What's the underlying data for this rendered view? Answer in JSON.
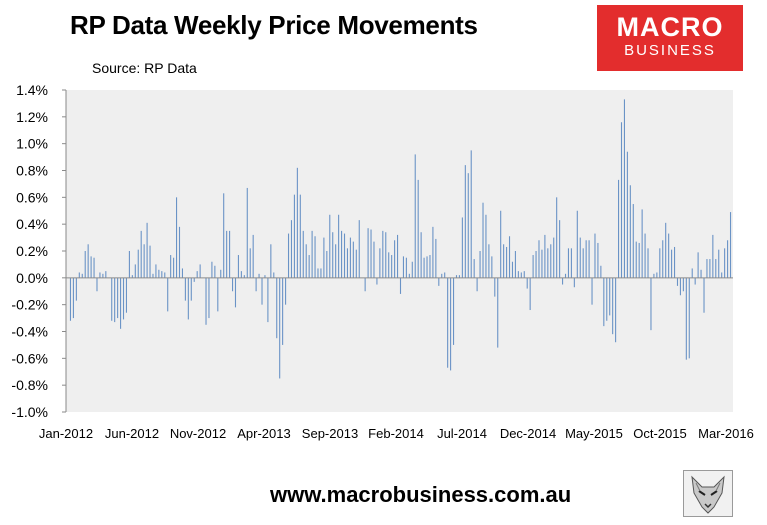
{
  "header": {
    "title": "RP Data Weekly Price Movements",
    "source": "Source: RP Data"
  },
  "logo": {
    "line1": "MACRO",
    "line2": "BUSINESS"
  },
  "footer": {
    "url": "www.macrobusiness.com.au"
  },
  "colors": {
    "bar": "#6a93c6",
    "plot_bg": "#efefef",
    "logo_bg": "#e32d2d"
  },
  "chart_data": {
    "type": "bar",
    "title": "RP Data Weekly Price Movements",
    "xlabel": "",
    "ylabel": "",
    "ylim": [
      -1.0,
      1.4
    ],
    "y_ticks": [
      -1.0,
      -0.8,
      -0.6,
      -0.4,
      -0.2,
      0.0,
      0.2,
      0.4,
      0.6,
      0.8,
      1.0,
      1.2,
      1.4
    ],
    "y_tick_labels": [
      "-1.0%",
      "-0.8%",
      "-0.6%",
      "-0.4%",
      "-0.2%",
      "0.0%",
      "0.2%",
      "0.4%",
      "0.6%",
      "0.8%",
      "1.0%",
      "1.2%",
      "1.4%"
    ],
    "x_tick_labels": [
      "Jan-2012",
      "Jun-2012",
      "Nov-2012",
      "Apr-2013",
      "Sep-2013",
      "Feb-2014",
      "Jul-2014",
      "Dec-2014",
      "May-2015",
      "Oct-2015",
      "Mar-2016"
    ],
    "x_range": [
      "2012-01",
      "2016-03"
    ],
    "grid": false,
    "legend": "none",
    "values": [
      -0.32,
      -0.3,
      -0.17,
      0.04,
      0.03,
      0.2,
      0.25,
      0.16,
      0.15,
      -0.1,
      0.04,
      0.03,
      0.05,
      0.0,
      -0.32,
      -0.33,
      -0.3,
      -0.38,
      -0.31,
      -0.26,
      0.2,
      0.02,
      0.1,
      0.21,
      0.35,
      0.25,
      0.41,
      0.24,
      0.03,
      0.1,
      0.06,
      0.05,
      0.04,
      -0.25,
      0.17,
      0.15,
      0.6,
      0.38,
      0.07,
      -0.17,
      -0.31,
      -0.17,
      -0.03,
      0.05,
      0.1,
      0.0,
      -0.35,
      -0.3,
      0.12,
      0.09,
      -0.25,
      0.06,
      0.63,
      0.35,
      0.35,
      -0.1,
      -0.22,
      0.17,
      0.05,
      0.02,
      0.67,
      0.22,
      0.32,
      -0.1,
      0.03,
      -0.2,
      0.02,
      -0.33,
      0.25,
      0.04,
      -0.45,
      -0.75,
      -0.5,
      -0.2,
      0.33,
      0.43,
      0.62,
      0.82,
      0.62,
      0.35,
      0.25,
      0.17,
      0.35,
      0.31,
      0.07,
      0.07,
      0.3,
      0.2,
      0.47,
      0.34,
      0.25,
      0.47,
      0.35,
      0.33,
      0.22,
      0.3,
      0.27,
      0.21,
      0.43,
      0.0,
      -0.1,
      0.37,
      0.36,
      0.27,
      -0.05,
      0.22,
      0.35,
      0.34,
      0.19,
      0.17,
      0.28,
      0.32,
      -0.12,
      0.16,
      0.15,
      0.03,
      0.12,
      0.92,
      0.73,
      0.34,
      0.15,
      0.16,
      0.17,
      0.38,
      0.29,
      -0.06,
      0.03,
      0.04,
      -0.67,
      -0.69,
      -0.5,
      0.02,
      0.02,
      0.45,
      0.84,
      0.78,
      0.95,
      0.14,
      -0.1,
      0.2,
      0.56,
      0.47,
      0.25,
      0.16,
      -0.14,
      -0.52,
      0.5,
      0.25,
      0.23,
      0.31,
      0.12,
      0.2,
      0.05,
      0.04,
      0.05,
      -0.08,
      -0.24,
      0.17,
      0.2,
      0.28,
      0.21,
      0.32,
      0.22,
      0.25,
      0.3,
      0.6,
      0.43,
      -0.05,
      0.03,
      0.22,
      0.22,
      -0.07,
      0.5,
      0.3,
      0.22,
      0.28,
      0.28,
      -0.2,
      0.33,
      0.26,
      0.09,
      -0.36,
      -0.32,
      -0.28,
      -0.42,
      -0.48,
      0.73,
      1.16,
      1.33,
      0.94,
      0.69,
      0.55,
      0.27,
      0.26,
      0.51,
      0.33,
      0.22,
      -0.39,
      0.03,
      0.04,
      0.22,
      0.28,
      0.41,
      0.33,
      0.21,
      0.23,
      -0.06,
      -0.13,
      -0.1,
      -0.61,
      -0.6,
      0.07,
      -0.05,
      0.19,
      0.06,
      -0.26,
      0.14,
      0.14,
      0.32,
      0.14,
      0.21,
      0.04,
      0.22,
      0.28,
      0.49
    ]
  }
}
